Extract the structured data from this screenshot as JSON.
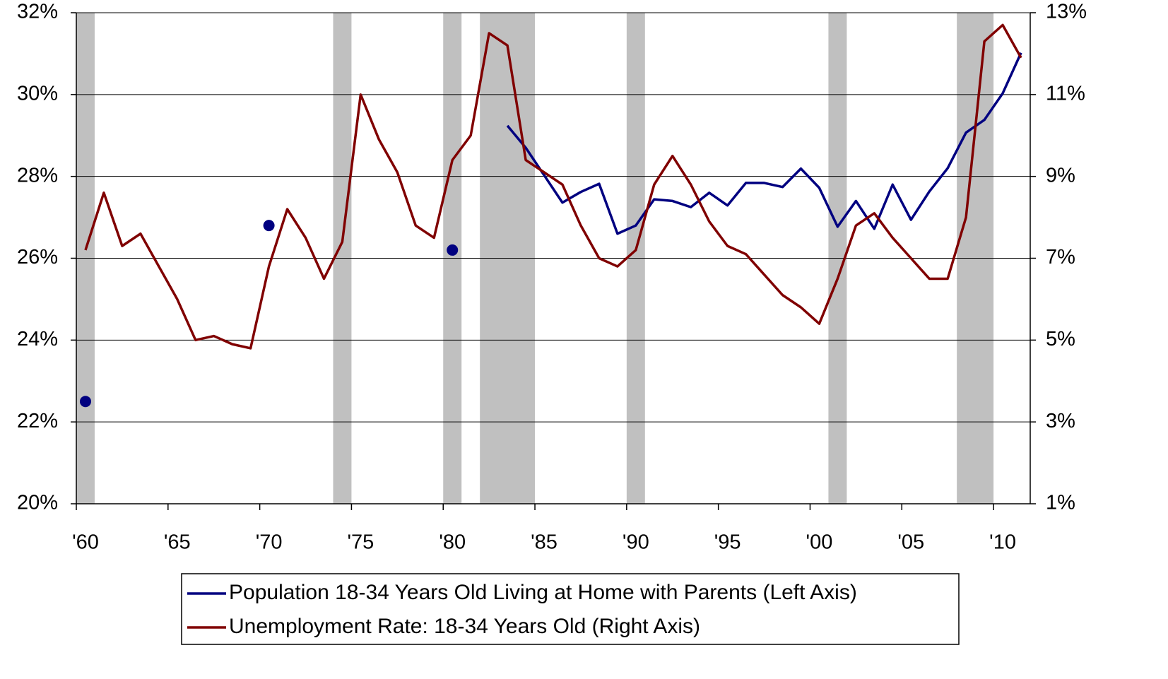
{
  "chart_data": {
    "type": "line",
    "x": [
      1960,
      1961,
      1962,
      1963,
      1964,
      1965,
      1966,
      1967,
      1968,
      1969,
      1970,
      1971,
      1972,
      1973,
      1974,
      1975,
      1976,
      1977,
      1978,
      1979,
      1980,
      1981,
      1982,
      1983,
      1984,
      1985,
      1986,
      1987,
      1988,
      1989,
      1990,
      1991,
      1992,
      1993,
      1994,
      1995,
      1996,
      1997,
      1998,
      1999,
      2000,
      2001,
      2002,
      2003,
      2004,
      2005,
      2006,
      2007,
      2008,
      2009,
      2010,
      2011
    ],
    "xlim": [
      1959.5,
      2011.5
    ],
    "xticks": [
      {
        "value": 1960,
        "label": "'60"
      },
      {
        "value": 1965,
        "label": "'65"
      },
      {
        "value": 1970,
        "label": "'70"
      },
      {
        "value": 1975,
        "label": "'75"
      },
      {
        "value": 1980,
        "label": "'80"
      },
      {
        "value": 1985,
        "label": "'85"
      },
      {
        "value": 1990,
        "label": "'90"
      },
      {
        "value": 1995,
        "label": "'95"
      },
      {
        "value": 2000,
        "label": "'00"
      },
      {
        "value": 2005,
        "label": "'05"
      },
      {
        "value": 2010,
        "label": "'10"
      }
    ],
    "ylim": [
      20,
      32
    ],
    "yticks": [
      {
        "value": 20,
        "label": "20%"
      },
      {
        "value": 22,
        "label": "22%"
      },
      {
        "value": 24,
        "label": "24%"
      },
      {
        "value": 26,
        "label": "26%"
      },
      {
        "value": 28,
        "label": "28%"
      },
      {
        "value": 30,
        "label": "30%"
      },
      {
        "value": 32,
        "label": "32%"
      }
    ],
    "y2lim": [
      1,
      13
    ],
    "y2ticks": [
      {
        "value": 1,
        "label": "1%"
      },
      {
        "value": 3,
        "label": "3%"
      },
      {
        "value": 5,
        "label": "5%"
      },
      {
        "value": 7,
        "label": "7%"
      },
      {
        "value": 9,
        "label": "9%"
      },
      {
        "value": 11,
        "label": "11%"
      },
      {
        "value": 13,
        "label": "13%"
      }
    ],
    "grid": true,
    "recessions": [
      [
        1960,
        1960
      ],
      [
        1974,
        1974
      ],
      [
        1980,
        1980
      ],
      [
        1982,
        1984
      ],
      [
        1990,
        1990
      ],
      [
        2001,
        2001
      ],
      [
        2008,
        2009
      ]
    ],
    "recession_color": "#c0c0c0",
    "series": [
      {
        "name": "Population 18-34 Years Old Living at Home with Parents (Left Axis)",
        "color": "#000080",
        "axis": "y",
        "values": [
          22.5,
          null,
          null,
          null,
          null,
          null,
          null,
          null,
          null,
          null,
          26.8,
          null,
          null,
          null,
          null,
          null,
          null,
          null,
          null,
          null,
          26.2,
          null,
          null,
          29.24,
          28.7,
          28.03,
          27.36,
          27.62,
          27.82,
          26.6,
          26.8,
          27.44,
          27.4,
          27.25,
          27.6,
          27.29,
          27.84,
          27.84,
          27.74,
          28.19,
          27.72,
          26.77,
          27.4,
          26.72,
          27.8,
          26.94,
          27.63,
          28.2,
          29.07,
          29.38,
          30.03,
          31.02
        ]
      },
      {
        "name": "Unemployment Rate: 18-34 Years Old (Right Axis)",
        "color": "#800000",
        "axis": "y2",
        "values": [
          7.2,
          8.6,
          7.3,
          7.6,
          6.8,
          6.0,
          5.0,
          5.1,
          4.9,
          4.8,
          6.8,
          8.2,
          7.5,
          6.5,
          7.4,
          11.0,
          9.9,
          9.1,
          7.8,
          7.5,
          9.4,
          10.0,
          12.5,
          12.2,
          9.4,
          9.1,
          8.8,
          7.8,
          7.0,
          6.8,
          7.2,
          8.8,
          9.5,
          8.8,
          7.9,
          7.3,
          7.1,
          6.6,
          6.1,
          5.8,
          5.4,
          6.5,
          7.8,
          8.1,
          7.5,
          7.0,
          6.5,
          6.5,
          8.0,
          12.3,
          12.7,
          11.9
        ]
      }
    ]
  }
}
